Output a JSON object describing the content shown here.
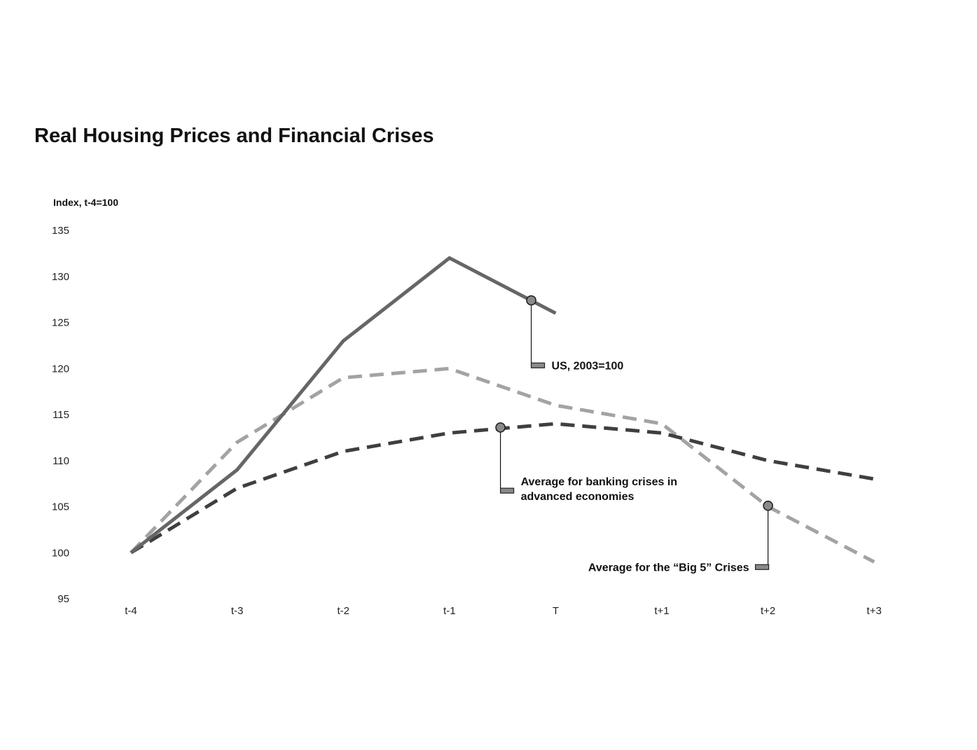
{
  "chart_data": {
    "type": "line",
    "title": "Real Housing Prices and Financial Crises",
    "ylabel": "Index, t-4=100",
    "xlabel": "",
    "ylim": [
      95,
      135
    ],
    "yticks": [
      95,
      100,
      105,
      110,
      115,
      120,
      125,
      130,
      135
    ],
    "categories": [
      "t-4",
      "t-3",
      "t-2",
      "t-1",
      "T",
      "t+1",
      "t+2",
      "t+3"
    ],
    "grid": false,
    "series": [
      {
        "name": "Average for the “Big 5” Crises",
        "style": "dashed",
        "color": "#a3a3a3",
        "values": [
          100,
          112,
          119,
          120,
          116,
          114,
          105,
          99
        ]
      },
      {
        "name": "Average for banking crises in advanced economies",
        "style": "dashed",
        "color": "#3f3f3f",
        "values": [
          100,
          107,
          111,
          113,
          114,
          113,
          110,
          108
        ]
      },
      {
        "name": "US, 2003=100",
        "style": "solid",
        "color": "#666666",
        "values": [
          100,
          109,
          123,
          132,
          126,
          null,
          null,
          null
        ]
      }
    ],
    "annotations": [
      {
        "series": 2,
        "lines": [
          "US, 2003=100"
        ],
        "at_x": 3.77,
        "at_y": 127.4,
        "label_y": 120.3,
        "align": "left"
      },
      {
        "series": 1,
        "lines": [
          "Average for banking crises in",
          "advanced economies"
        ],
        "at_x": 3.48,
        "at_y": 113.6,
        "label_y": 106.7,
        "align": "left"
      },
      {
        "series": 0,
        "lines": [
          "Average for the “Big 5” Crises"
        ],
        "at_x": 6.0,
        "at_y": 105.1,
        "label_y": 98.4,
        "align": "right"
      }
    ]
  }
}
